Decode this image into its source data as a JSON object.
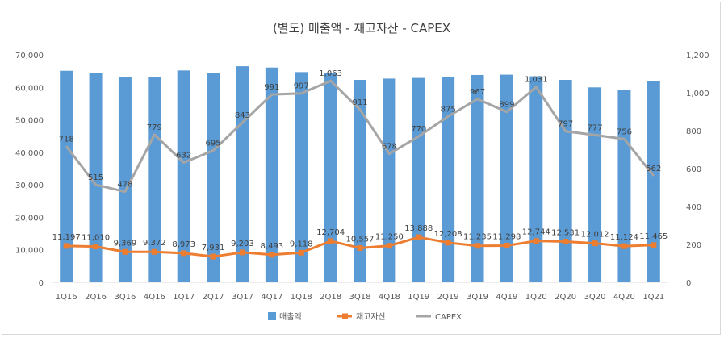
{
  "chart_data": {
    "type": "bar",
    "title": "(별도) 매출액 - 재고자산 - CAPEX",
    "categories": [
      "1Q16",
      "2Q16",
      "3Q16",
      "4Q16",
      "1Q17",
      "2Q17",
      "3Q17",
      "4Q17",
      "1Q18",
      "2Q18",
      "3Q18",
      "4Q18",
      "1Q19",
      "2Q19",
      "3Q19",
      "4Q19",
      "1Q20",
      "2Q20",
      "3Q20",
      "4Q20",
      "1Q21"
    ],
    "series": [
      {
        "name": "매출액",
        "type": "bar",
        "axis": "left",
        "color": "#5b9bd5",
        "values": [
          65100,
          64400,
          63200,
          63200,
          65200,
          64500,
          66500,
          66100,
          64700,
          64300,
          62300,
          62700,
          62900,
          63300,
          63800,
          63900,
          63400,
          62300,
          60000,
          59300,
          62000
        ]
      },
      {
        "name": "재고자산",
        "type": "line",
        "axis": "left",
        "color": "#ed7d31",
        "values": [
          11197,
          11010,
          9369,
          9372,
          8973,
          7931,
          9203,
          8493,
          9118,
          12704,
          10557,
          11250,
          13888,
          12208,
          11235,
          11298,
          12744,
          12531,
          12012,
          11124,
          11465
        ],
        "labels": [
          "11,197",
          "11,010",
          "9,369",
          "9,372",
          "8,973",
          "7,931",
          "9,203",
          "8,493",
          "9,118",
          "12,704",
          "10,557",
          "11,250",
          "13,888",
          "12,208",
          "11,235",
          "11,298",
          "12,744",
          "12,531",
          "12,012",
          "11,124",
          "11,465"
        ]
      },
      {
        "name": "CAPEX",
        "type": "line",
        "axis": "right",
        "color": "#a5a5a5",
        "values": [
          718,
          515,
          478,
          779,
          632,
          695,
          843,
          991,
          997,
          1063,
          911,
          678,
          770,
          875,
          967,
          899,
          1031,
          797,
          777,
          756,
          562
        ],
        "labels": [
          "718",
          "515",
          "478",
          "779",
          "632",
          "695",
          "843",
          "991",
          "997",
          "1,063",
          "911",
          "678",
          "770",
          "875",
          "967",
          "899",
          "1,031",
          "797",
          "777",
          "756",
          "562"
        ]
      }
    ],
    "y_left": {
      "min": 0,
      "max": 70000,
      "ticks": [
        "0",
        "10,000",
        "20,000",
        "30,000",
        "40,000",
        "50,000",
        "60,000",
        "70,000"
      ]
    },
    "y_right": {
      "min": 0,
      "max": 1200,
      "ticks": [
        "0",
        "200",
        "400",
        "600",
        "800",
        "1,000",
        "1,200"
      ]
    },
    "grid": false,
    "legend_position": "bottom"
  }
}
